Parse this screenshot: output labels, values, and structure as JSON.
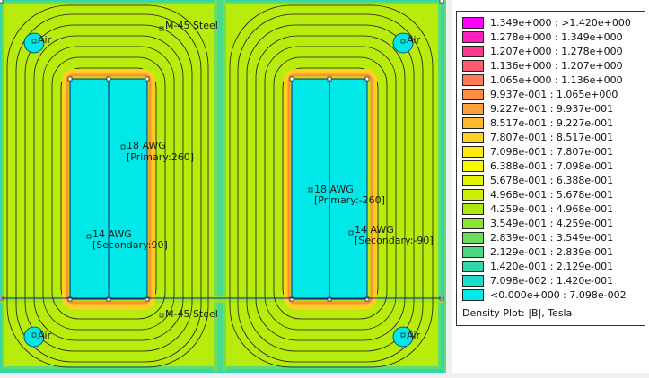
{
  "plot": {
    "labels": {
      "steel_top": "M-45 Steel",
      "steel_bottom": "M-45 Steel",
      "air_tl": "Air",
      "air_tr": "Air",
      "air_bl": "Air",
      "air_br": "Air",
      "awg18_left": "18 AWG",
      "primary_left": "[Primary:260]",
      "awg14_left": "14 AWG",
      "secondary_left": "[Secondary:90]",
      "awg18_right": "18 AWG",
      "primary_right": "[Primary:-260]",
      "awg14_right": "14 AWG",
      "secondary_right": "[Secondary:-90]"
    }
  },
  "legend": {
    "title": "Density Plot: |B|, Tesla",
    "entries": [
      {
        "range": "1.349e+000 : >1.420e+000",
        "color": "#ff00ff"
      },
      {
        "range": "1.278e+000 : 1.349e+000",
        "color": "#ff1fbf"
      },
      {
        "range": "1.207e+000 : 1.278e+000",
        "color": "#ff3a8e"
      },
      {
        "range": "1.136e+000 : 1.207e+000",
        "color": "#ff5a6e"
      },
      {
        "range": "1.065e+000 : 1.136e+000",
        "color": "#ff7a58"
      },
      {
        "range": "9.937e-001 : 1.065e+000",
        "color": "#ff8c40"
      },
      {
        "range": "9.227e-001 : 9.937e-001",
        "color": "#ffa038"
      },
      {
        "range": "8.517e-001 : 9.227e-001",
        "color": "#ffb830"
      },
      {
        "range": "7.807e-001 : 8.517e-001",
        "color": "#ffd020"
      },
      {
        "range": "7.098e-001 : 7.807e-001",
        "color": "#ffe810"
      },
      {
        "range": "6.388e-001 : 7.098e-001",
        "color": "#f8f800"
      },
      {
        "range": "5.678e-001 : 6.388e-001",
        "color": "#e2f600"
      },
      {
        "range": "4.968e-001 : 5.678e-001",
        "color": "#c8f000"
      },
      {
        "range": "4.259e-001 : 4.968e-001",
        "color": "#aaea10"
      },
      {
        "range": "3.549e-001 : 4.259e-001",
        "color": "#8ae430"
      },
      {
        "range": "2.839e-001 : 3.549e-001",
        "color": "#6ade58"
      },
      {
        "range": "2.129e-001 : 2.839e-001",
        "color": "#4ad880"
      },
      {
        "range": "1.420e-001 : 2.129e-001",
        "color": "#30d8a8"
      },
      {
        "range": "7.098e-002 : 1.420e-001",
        "color": "#1adcc8"
      },
      {
        "range": "<0.000e+000 : 7.098e-002",
        "color": "#00e8e8"
      }
    ]
  }
}
